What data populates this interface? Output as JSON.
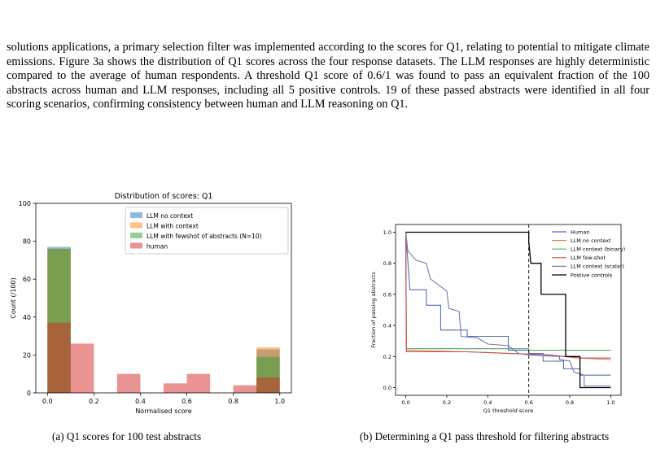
{
  "paragraph": "solutions applications, a primary selection filter was implemented according to the scores for Q1, relating to potential to mitigate climate emissions. Figure 3a shows the distribution of Q1 scores across the four response datasets. The LLM responses are highly deterministic compared to the average of human respondents. A threshold Q1 score of 0.6/1 was found to pass an equivalent fraction of the 100 abstracts across human and LLM responses, including all 5 positive controls. 19 of these passed abstracts were identified in all four scoring scenarios, confirming consistency between human and LLM reasoning on Q1.",
  "captions": {
    "a": "(a) Q1 scores for 100 test abstracts",
    "b": "(b) Determining a Q1 pass threshold for filtering abstracts"
  },
  "chart_data": [
    {
      "type": "bar",
      "title": "Distribution of scores: Q1",
      "xlabel": "Normalised score",
      "ylabel": "Count (/100)",
      "xlim": [
        -0.05,
        1.05
      ],
      "ylim": [
        0,
        100
      ],
      "xticks": [
        "0.0",
        "0.2",
        "0.4",
        "0.6",
        "0.8",
        "1.0"
      ],
      "yticks": [
        "0",
        "20",
        "40",
        "60",
        "80",
        "100"
      ],
      "bin_edges": [
        0.0,
        0.1,
        0.2,
        0.3,
        0.4,
        0.5,
        0.6,
        0.7,
        0.8,
        0.9,
        1.0
      ],
      "legend_position": "upper right",
      "series": [
        {
          "name": "LLM no context",
          "color": "#1f77b4",
          "values": [
            77,
            0,
            0,
            0,
            0,
            0,
            0,
            0,
            0,
            23
          ]
        },
        {
          "name": "LLM with context",
          "color": "#ff7f0e",
          "values": [
            76,
            0,
            0,
            0,
            0,
            0,
            0,
            0,
            0,
            24
          ]
        },
        {
          "name": "LLM with fewshot of abstracts (N=10)",
          "color": "#2ca02c",
          "values": [
            76,
            0,
            0,
            0,
            0,
            0,
            0,
            0,
            0,
            19
          ]
        },
        {
          "name": "human",
          "color": "#d62728",
          "values": [
            37,
            26,
            0,
            10,
            0,
            5,
            10,
            0,
            4,
            8
          ]
        }
      ]
    },
    {
      "type": "line",
      "title": "",
      "xlabel": "Q1 threshold score",
      "ylabel": "Fraction of passing abstracts",
      "xlim": [
        -0.05,
        1.05
      ],
      "ylim": [
        -0.05,
        1.05
      ],
      "xticks": [
        "0.0",
        "0.2",
        "0.4",
        "0.6",
        "0.8",
        "1.0"
      ],
      "yticks": [
        "0.0",
        "0.2",
        "0.4",
        "0.6",
        "0.8",
        "1.0"
      ],
      "threshold_line": 0.6,
      "legend_position": "upper right",
      "series": [
        {
          "name": "Human",
          "color": "#4c72b0",
          "points": [
            [
              0,
              1.0
            ],
            [
              0.02,
              0.63
            ],
            [
              0.1,
              0.63
            ],
            [
              0.1,
              0.53
            ],
            [
              0.17,
              0.53
            ],
            [
              0.17,
              0.37
            ],
            [
              0.3,
              0.37
            ],
            [
              0.3,
              0.33
            ],
            [
              0.5,
              0.33
            ],
            [
              0.5,
              0.24
            ],
            [
              0.6,
              0.24
            ],
            [
              0.6,
              0.22
            ],
            [
              0.67,
              0.22
            ],
            [
              0.67,
              0.17
            ],
            [
              0.77,
              0.17
            ],
            [
              0.77,
              0.12
            ],
            [
              0.85,
              0.12
            ],
            [
              0.85,
              0.08
            ],
            [
              1.0,
              0.08
            ]
          ]
        },
        {
          "name": "LLM no context",
          "color": "#dd8452",
          "points": [
            [
              0,
              1.0
            ],
            [
              0.003,
              0.24
            ],
            [
              0.3,
              0.23
            ],
            [
              0.7,
              0.21
            ],
            [
              0.85,
              0.19
            ],
            [
              1.0,
              0.18
            ]
          ]
        },
        {
          "name": "LLM context (binary)",
          "color": "#55a868",
          "points": [
            [
              0,
              1.0
            ],
            [
              0.003,
              0.25
            ],
            [
              0.6,
              0.25
            ],
            [
              0.6,
              0.24
            ],
            [
              1.0,
              0.24
            ]
          ]
        },
        {
          "name": "LLM few-shot",
          "color": "#c44e52",
          "points": [
            [
              0,
              1.0
            ],
            [
              0.003,
              0.23
            ],
            [
              0.3,
              0.23
            ],
            [
              0.7,
              0.21
            ],
            [
              0.85,
              0.19
            ],
            [
              1.0,
              0.19
            ]
          ]
        },
        {
          "name": "LLM context (scalar)",
          "color": "#8172b3",
          "points": [
            [
              0,
              1.0
            ],
            [
              0.01,
              0.88
            ],
            [
              0.05,
              0.82
            ],
            [
              0.1,
              0.8
            ],
            [
              0.12,
              0.7
            ],
            [
              0.2,
              0.62
            ],
            [
              0.21,
              0.51
            ],
            [
              0.26,
              0.49
            ],
            [
              0.27,
              0.33
            ],
            [
              0.35,
              0.32
            ],
            [
              0.4,
              0.28
            ],
            [
              0.5,
              0.27
            ],
            [
              0.55,
              0.22
            ],
            [
              0.6,
              0.21
            ],
            [
              0.75,
              0.2
            ],
            [
              0.75,
              0.18
            ],
            [
              0.8,
              0.17
            ],
            [
              0.82,
              0.1
            ],
            [
              0.87,
              0.08
            ],
            [
              0.87,
              0.01
            ],
            [
              1.0,
              0.01
            ]
          ]
        },
        {
          "name": "Postive controls",
          "color": "#000000",
          "points": [
            [
              0,
              1.0
            ],
            [
              0.6,
              1.0
            ],
            [
              0.6,
              0.94
            ],
            [
              0.61,
              0.8
            ],
            [
              0.66,
              0.8
            ],
            [
              0.66,
              0.6
            ],
            [
              0.78,
              0.6
            ],
            [
              0.78,
              0.2
            ],
            [
              0.85,
              0.2
            ],
            [
              0.85,
              0.0
            ],
            [
              1.0,
              0.0
            ]
          ]
        }
      ]
    }
  ]
}
